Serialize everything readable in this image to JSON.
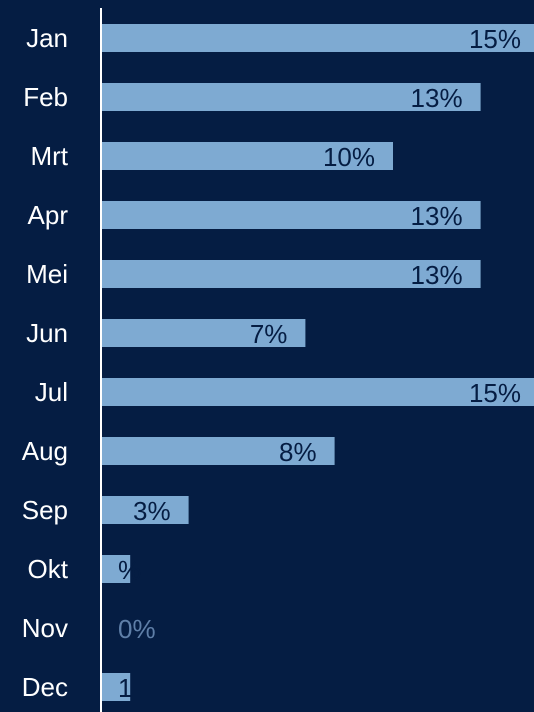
{
  "chart_data": {
    "type": "bar",
    "orientation": "horizontal",
    "categories": [
      "Jan",
      "Feb",
      "Mrt",
      "Apr",
      "Mei",
      "Jun",
      "Jul",
      "Aug",
      "Sep",
      "Okt",
      "Nov",
      "Dec"
    ],
    "values": [
      15,
      13,
      10,
      13,
      13,
      7,
      15,
      8,
      3,
      1,
      0,
      1
    ],
    "value_labels": [
      "15%",
      "13%",
      "10%",
      "13%",
      "13%",
      "7%",
      "15%",
      "8%",
      "3%",
      "%",
      "0%",
      "1"
    ],
    "color": "#7eaad2",
    "xlim": [
      0,
      15
    ]
  }
}
